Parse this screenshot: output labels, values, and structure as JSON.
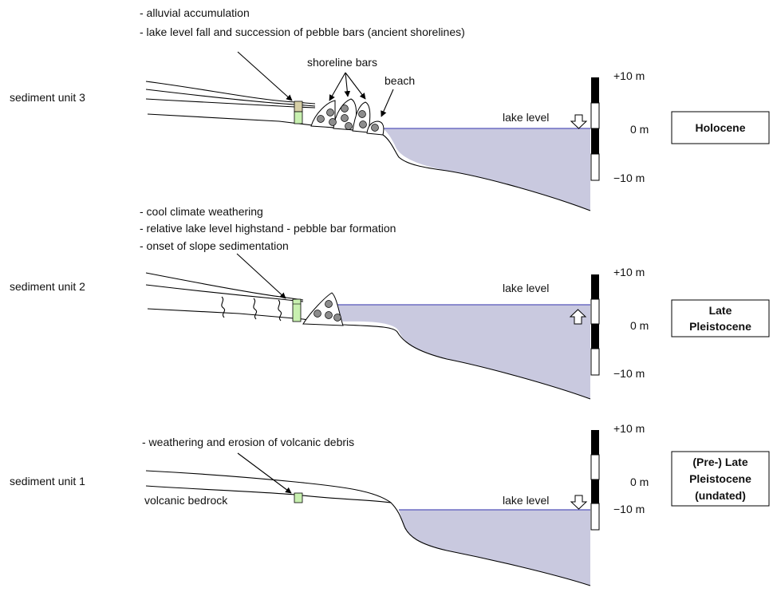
{
  "panel3": {
    "unit_label": "sediment unit 3",
    "notes": [
      "- alluvial accumulation",
      "- lake level fall and succession of pebble bars (ancient shorelines)"
    ],
    "shoreline_bars_label": "shoreline bars",
    "beach_label": "beach",
    "lake_level_label": "lake level",
    "era": [
      "Holocene"
    ],
    "scale": {
      "top": "+10 m",
      "mid": "0 m",
      "bottom": "−10 m"
    }
  },
  "panel2": {
    "unit_label": "sediment unit 2",
    "notes": [
      "- cool climate weathering",
      "- relative lake level highstand - pebble bar formation",
      "- onset of slope sedimentation"
    ],
    "lake_level_label": "lake level",
    "era": [
      "Late",
      "Pleistocene"
    ],
    "scale": {
      "top": "+10 m",
      "mid": "0 m",
      "bottom": "−10 m"
    }
  },
  "panel1": {
    "unit_label": "sediment unit 1",
    "notes": [
      "- weathering and erosion of volcanic debris"
    ],
    "bedrock_label": "volcanic bedrock",
    "lake_level_label": "lake level",
    "era": [
      "(Pre-) Late",
      "Pleistocene",
      "(undated)"
    ],
    "scale": {
      "top": "+10 m",
      "mid": "0 m",
      "bottom": "−10 m"
    }
  },
  "colors": {
    "water": "#c9c9df",
    "lake_line": "#6d6dc4",
    "sediment": "#c8f0b0",
    "alluvial": "#d6cfa6",
    "pebble": "#8c8c8c"
  }
}
